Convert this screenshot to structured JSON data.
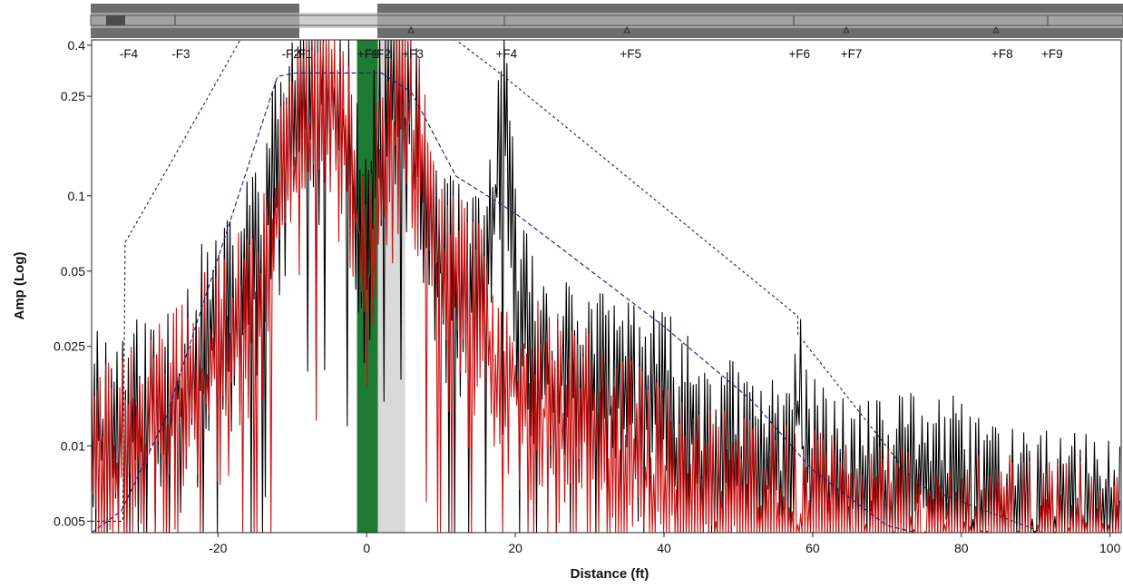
{
  "chart_data": {
    "type": "line",
    "title": "",
    "xlabel": "Distance (ft)",
    "ylabel": "Amp (Log)",
    "y_scale": "log",
    "xlim": [
      -37,
      101.5
    ],
    "ylim": [
      0.0045,
      0.42
    ],
    "x_ticks": [
      -20,
      0,
      20,
      40,
      60,
      80,
      100
    ],
    "x_tick_labels": [
      "-20",
      "0",
      "20",
      "40",
      "60",
      "80",
      "100"
    ],
    "y_ticks": [
      0.005,
      0.01,
      0.025,
      0.05,
      0.1,
      0.25,
      0.4
    ],
    "y_tick_labels": [
      "0.005",
      "0.01",
      "0.025",
      "0.05",
      "0.1",
      "0.25",
      "0.4"
    ],
    "grid": false,
    "legend": "none",
    "markers": [
      {
        "label": "-F4",
        "x": -32
      },
      {
        "label": "-F3",
        "x": -25
      },
      {
        "label": "-F2",
        "x": -10.2
      },
      {
        "label": "-F1",
        "x": -8.5
      },
      {
        "label": "+F1",
        "x": 0.2
      },
      {
        "label": "+F2",
        "x": 1.8
      },
      {
        "label": "+F3",
        "x": 6.2
      },
      {
        "label": "+F4",
        "x": 18.8
      },
      {
        "label": "+F5",
        "x": 35.5
      },
      {
        "label": "+F6",
        "x": 58.2
      },
      {
        "label": "+F7",
        "x": 65.2
      },
      {
        "label": "+F8",
        "x": 85.5
      },
      {
        "label": "+F9",
        "x": 92.2
      }
    ],
    "shaded_regions": [
      {
        "name": "gray-band",
        "x_start": -1.3,
        "x_end": 5.2,
        "color": "#d9d9d9"
      },
      {
        "name": "green-band",
        "x_start": -1.3,
        "x_end": 1.5,
        "color": "#1e7b34"
      }
    ],
    "envelopes": [
      {
        "name": "outer-limit",
        "color": "#222222",
        "dash": "dotted",
        "points": [
          [
            -37,
            0.005
          ],
          [
            -32.8,
            0.005
          ],
          [
            -32.5,
            0.065
          ],
          [
            -25.5,
            0.15
          ],
          [
            -17,
            0.42
          ],
          [
            12,
            0.42
          ],
          [
            18.5,
            0.3
          ],
          [
            58,
            0.033
          ],
          [
            58,
            0.028
          ],
          [
            74,
            0.007
          ],
          [
            91,
            0.0045
          ]
        ]
      },
      {
        "name": "inner-limit",
        "color": "#1a1a7a",
        "dash": "dashed",
        "points": [
          [
            -37,
            0.0045
          ],
          [
            -33,
            0.0055
          ],
          [
            -27,
            0.013
          ],
          [
            -12,
            0.3
          ],
          [
            -9.5,
            0.31
          ],
          [
            2,
            0.31
          ],
          [
            6,
            0.26
          ],
          [
            12,
            0.12
          ],
          [
            20,
            0.085
          ],
          [
            40,
            0.03
          ],
          [
            52,
            0.015
          ],
          [
            60,
            0.008
          ],
          [
            70,
            0.0048
          ],
          [
            74,
            0.0042
          ]
        ]
      }
    ],
    "series": [
      {
        "color": "#000000",
        "seed": 11,
        "x": [
          -37,
          -35,
          -32,
          -28,
          -25,
          -22,
          -18,
          -15,
          -12,
          -10,
          -8,
          -6,
          -4,
          -2,
          0,
          2,
          4,
          6,
          8,
          10,
          12,
          14,
          16,
          17.5,
          18.5,
          19.5,
          21,
          24,
          28,
          32,
          36,
          40,
          45,
          50,
          55,
          57,
          58,
          59,
          62,
          65,
          70,
          75,
          80,
          85,
          90,
          95,
          101.5
        ],
        "y": [
          0.024,
          0.018,
          0.019,
          0.022,
          0.028,
          0.04,
          0.052,
          0.09,
          0.2,
          0.33,
          0.42,
          0.42,
          0.38,
          0.3,
          0.1,
          0.38,
          0.38,
          0.3,
          0.15,
          0.085,
          0.07,
          0.06,
          0.07,
          0.18,
          0.3,
          0.12,
          0.05,
          0.032,
          0.03,
          0.025,
          0.026,
          0.021,
          0.017,
          0.013,
          0.012,
          0.016,
          0.024,
          0.014,
          0.01,
          0.01,
          0.009,
          0.012,
          0.009,
          0.0085,
          0.0072,
          0.0068,
          0.007
        ]
      },
      {
        "color": "#cc1111",
        "seed": 29,
        "x": [
          -37,
          -34,
          -30,
          -26,
          -22,
          -18,
          -14,
          -11,
          -8,
          -5,
          -2,
          0,
          2,
          4,
          6,
          8,
          10,
          13,
          16,
          20,
          25,
          30,
          35,
          40,
          45,
          50,
          55,
          60,
          65,
          70,
          80,
          90,
          101.5
        ],
        "y": [
          0.012,
          0.014,
          0.017,
          0.022,
          0.03,
          0.04,
          0.075,
          0.17,
          0.3,
          0.37,
          0.25,
          0.07,
          0.2,
          0.34,
          0.35,
          0.15,
          0.07,
          0.06,
          0.045,
          0.03,
          0.022,
          0.018,
          0.014,
          0.011,
          0.009,
          0.0085,
          0.008,
          0.0075,
          0.0068,
          0.0062,
          0.0058,
          0.0055,
          0.0052
        ]
      }
    ]
  }
}
